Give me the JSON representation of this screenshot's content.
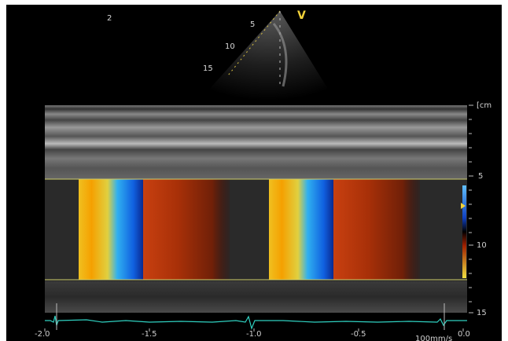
{
  "image_number": "2",
  "view_marker": "V",
  "sector_depth_labels": [
    "5",
    "10",
    "15"
  ],
  "depth_axis": {
    "unit": "[cm",
    "tick_labels": [
      "5",
      "10",
      "15"
    ]
  },
  "time_axis": {
    "tick_labels": [
      "-2.0",
      "-1.5",
      "-1.0",
      "-0.5",
      "0.0"
    ],
    "sweep_speed_label": "100mm/s"
  },
  "colors": {
    "background": "#000000",
    "gate_line": "#cfcf6a",
    "ecg_trace": "#2fd0c0",
    "marker": "#f2d23a"
  }
}
